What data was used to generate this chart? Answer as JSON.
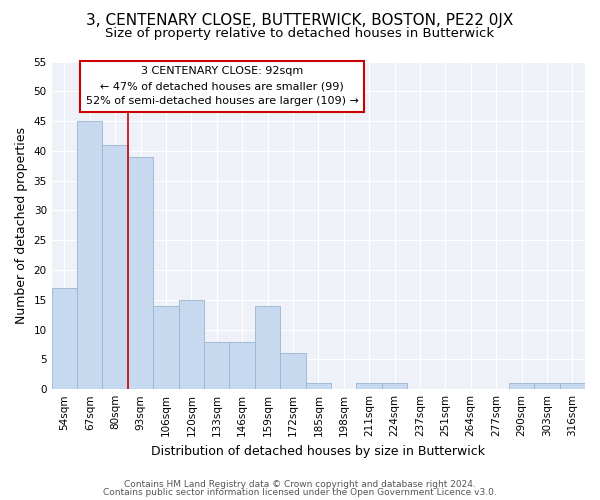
{
  "title": "3, CENTENARY CLOSE, BUTTERWICK, BOSTON, PE22 0JX",
  "subtitle": "Size of property relative to detached houses in Butterwick",
  "xlabel": "Distribution of detached houses by size in Butterwick",
  "ylabel": "Number of detached properties",
  "bins": [
    "54sqm",
    "67sqm",
    "80sqm",
    "93sqm",
    "106sqm",
    "120sqm",
    "133sqm",
    "146sqm",
    "159sqm",
    "172sqm",
    "185sqm",
    "198sqm",
    "211sqm",
    "224sqm",
    "237sqm",
    "251sqm",
    "264sqm",
    "277sqm",
    "290sqm",
    "303sqm",
    "316sqm"
  ],
  "values": [
    17,
    45,
    41,
    39,
    14,
    15,
    8,
    8,
    14,
    6,
    1,
    0,
    1,
    1,
    0,
    0,
    0,
    0,
    1,
    1,
    1
  ],
  "bar_color": "#c6d9ee",
  "bar_edge_color": "#9ab5d0",
  "bar_linewidth": 0.6,
  "vline_x_index": 3,
  "vline_color": "#cc0000",
  "annotation_text": "3 CENTENARY CLOSE: 92sqm\n← 47% of detached houses are smaller (99)\n52% of semi-detached houses are larger (109) →",
  "annotation_box_color": "white",
  "annotation_box_edge_color": "#cc0000",
  "ylim": [
    0,
    55
  ],
  "yticks": [
    0,
    5,
    10,
    15,
    20,
    25,
    30,
    35,
    40,
    45,
    50,
    55
  ],
  "footer1": "Contains HM Land Registry data © Crown copyright and database right 2024.",
  "footer2": "Contains public sector information licensed under the Open Government Licence v3.0.",
  "bg_color": "#eef2f8",
  "title_fontsize": 11,
  "subtitle_fontsize": 9.5,
  "axis_label_fontsize": 9,
  "tick_fontsize": 7.5,
  "annotation_fontsize": 8,
  "footer_fontsize": 6.5
}
